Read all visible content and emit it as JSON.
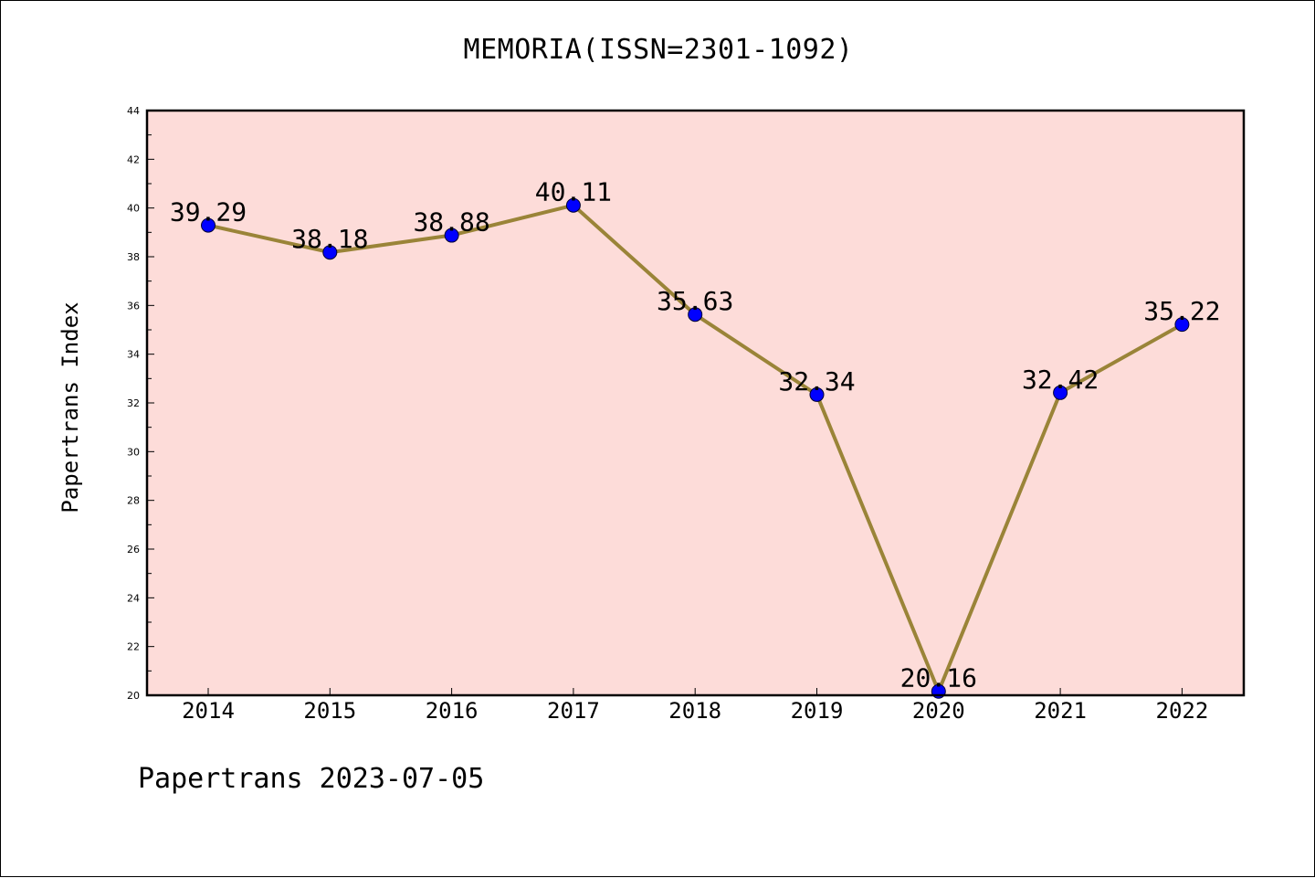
{
  "title": "MEMORIA(ISSN=2301-1092)",
  "footer": "Papertrans 2023-07-05",
  "colors": {
    "plot_background": "#fddcd9",
    "line": "#9a8438",
    "marker": "#0000ff",
    "axes": "#000000"
  },
  "chart_data": {
    "type": "line",
    "title": "MEMORIA(ISSN=2301-1092)",
    "xlabel": "",
    "ylabel": "Papertrans Index",
    "categories": [
      "2014",
      "2015",
      "2016",
      "2017",
      "2018",
      "2019",
      "2020",
      "2021",
      "2022"
    ],
    "series": [
      {
        "values": [
          39.29,
          38.18,
          38.88,
          40.11,
          35.63,
          32.34,
          20.16,
          32.42,
          35.22
        ],
        "labels": [
          "39.29",
          "38.18",
          "38.88",
          "40.11",
          "35.63",
          "32.34",
          "20.16",
          "32.42",
          "35.22"
        ]
      }
    ],
    "ylim": [
      20,
      44
    ],
    "yticks": [
      "20",
      "22",
      "24",
      "26",
      "28",
      "30",
      "32",
      "34",
      "36",
      "38",
      "40",
      "42",
      "44"
    ],
    "grid": false,
    "legend": "none"
  }
}
